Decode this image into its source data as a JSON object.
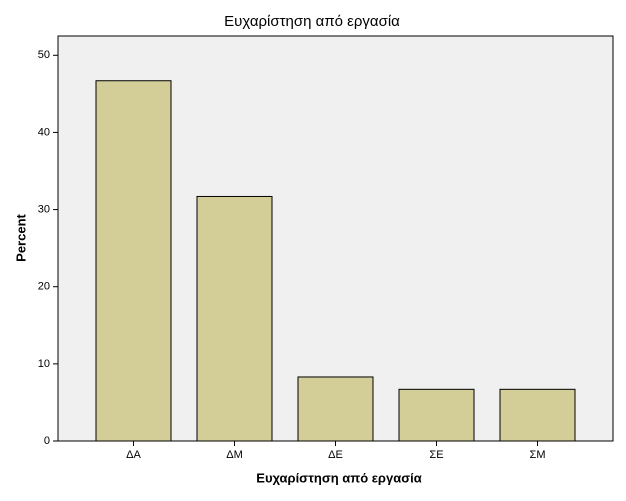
{
  "chart_data": {
    "type": "bar",
    "title": "Ευχαρίστηση από εργασία",
    "x_label": "Ευχαρίστηση από εργασία",
    "y_label": "Percent",
    "categories": [
      "ΔΑ",
      "ΔΜ",
      "ΔΕ",
      "ΣΕ",
      "ΣΜ"
    ],
    "values": [
      46.7,
      31.7,
      8.3,
      6.7,
      6.7
    ],
    "color": "#d3ce97",
    "ylim": [
      0,
      52.5
    ],
    "yticks": [
      0,
      10,
      20,
      30,
      40,
      50
    ]
  }
}
